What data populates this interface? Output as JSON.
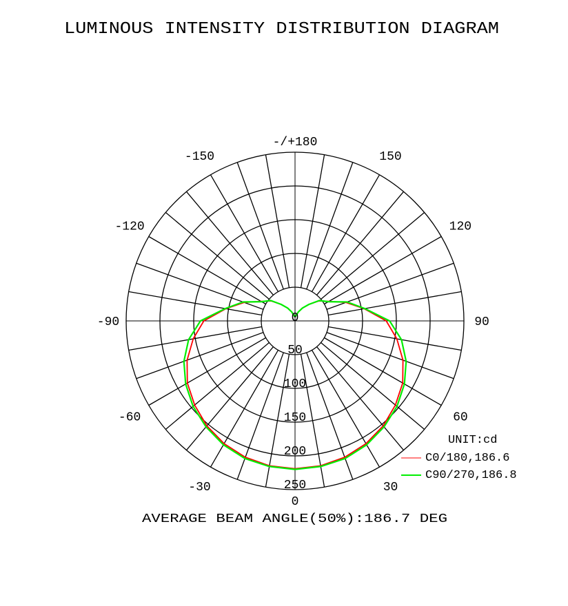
{
  "chart_data": {
    "type": "polar",
    "title": "LUMINOUS INTENSITY DISTRIBUTION DIAGRAM",
    "unit_label": "UNIT:cd",
    "footer": "AVERAGE BEAM ANGLE(50%):186.7 DEG",
    "angle_labels": [
      "-/+180",
      "150",
      "120",
      "90",
      "60",
      "30",
      "0",
      "-30",
      "-60",
      "-90",
      "-120",
      "-150"
    ],
    "angle_values": [
      180,
      150,
      120,
      90,
      60,
      30,
      0,
      -30,
      -60,
      -90,
      -120,
      -150
    ],
    "radial_ticks": [
      0,
      50,
      100,
      150,
      200,
      250
    ],
    "radial_max": 250,
    "angle_step_deg": 10,
    "series": [
      {
        "name": "C0/180,186.6",
        "color": "#ff0000",
        "angles": [
          0,
          10,
          20,
          30,
          40,
          50,
          60,
          70,
          80,
          90,
          100,
          110,
          120,
          130,
          140,
          150,
          160,
          170,
          180
        ],
        "values": [
          219,
          218,
          215,
          210,
          203,
          194,
          184,
          170,
          153,
          135,
          104,
          80,
          58,
          46,
          32,
          22,
          14,
          8,
          6
        ]
      },
      {
        "name": "C90/270,186.8",
        "color": "#00ee00",
        "angles": [
          0,
          10,
          20,
          30,
          40,
          50,
          60,
          70,
          80,
          90,
          100,
          110,
          120,
          130,
          140,
          150,
          160,
          170,
          180
        ],
        "values": [
          220,
          219,
          217,
          212,
          205,
          197,
          187,
          175,
          160,
          140,
          105,
          82,
          57,
          47,
          32,
          22,
          14,
          8,
          6
        ]
      }
    ],
    "grid": true,
    "legend": "bottom-right"
  }
}
